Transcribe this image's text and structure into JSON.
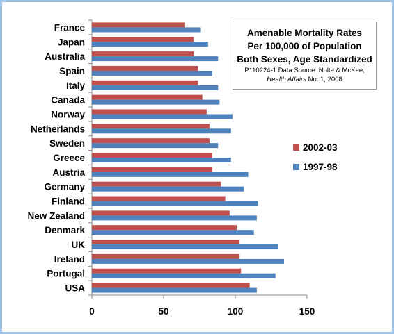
{
  "chart_data": {
    "type": "bar",
    "orientation": "horizontal",
    "title_lines": [
      "Amenable Mortality Rates",
      "Per 100,000 of Population",
      "Both Sexes, Age Standardized"
    ],
    "subtitle_line1": "P110224-1 Data Source: Nolte & McKee,",
    "subtitle_journal": "Health Affairs",
    "subtitle_issue": " No. 1, 2008",
    "categories": [
      "France",
      "Japan",
      "Australia",
      "Spain",
      "Italy",
      "Canada",
      "Norway",
      "Netherlands",
      "Sweden",
      "Greece",
      "Austria",
      "Germany",
      "Finland",
      "New Zealand",
      "Denmark",
      "UK",
      "Ireland",
      "Portugal",
      "USA"
    ],
    "series": [
      {
        "name": "2002-03",
        "color": "#c0504d",
        "values": [
          65,
          71,
          71,
          74,
          74,
          77,
          80,
          82,
          82,
          84,
          84,
          90,
          93,
          96,
          101,
          103,
          103,
          104,
          110
        ]
      },
      {
        "name": "1997-98",
        "color": "#4f81bd",
        "values": [
          76,
          81,
          88,
          84,
          88,
          89,
          98,
          97,
          88,
          97,
          109,
          106,
          116,
          115,
          113,
          130,
          134,
          128,
          115
        ]
      }
    ],
    "xlim": [
      0,
      150
    ],
    "xticks": [
      0,
      50,
      100,
      150
    ],
    "grid": false,
    "legend_position": "right"
  }
}
